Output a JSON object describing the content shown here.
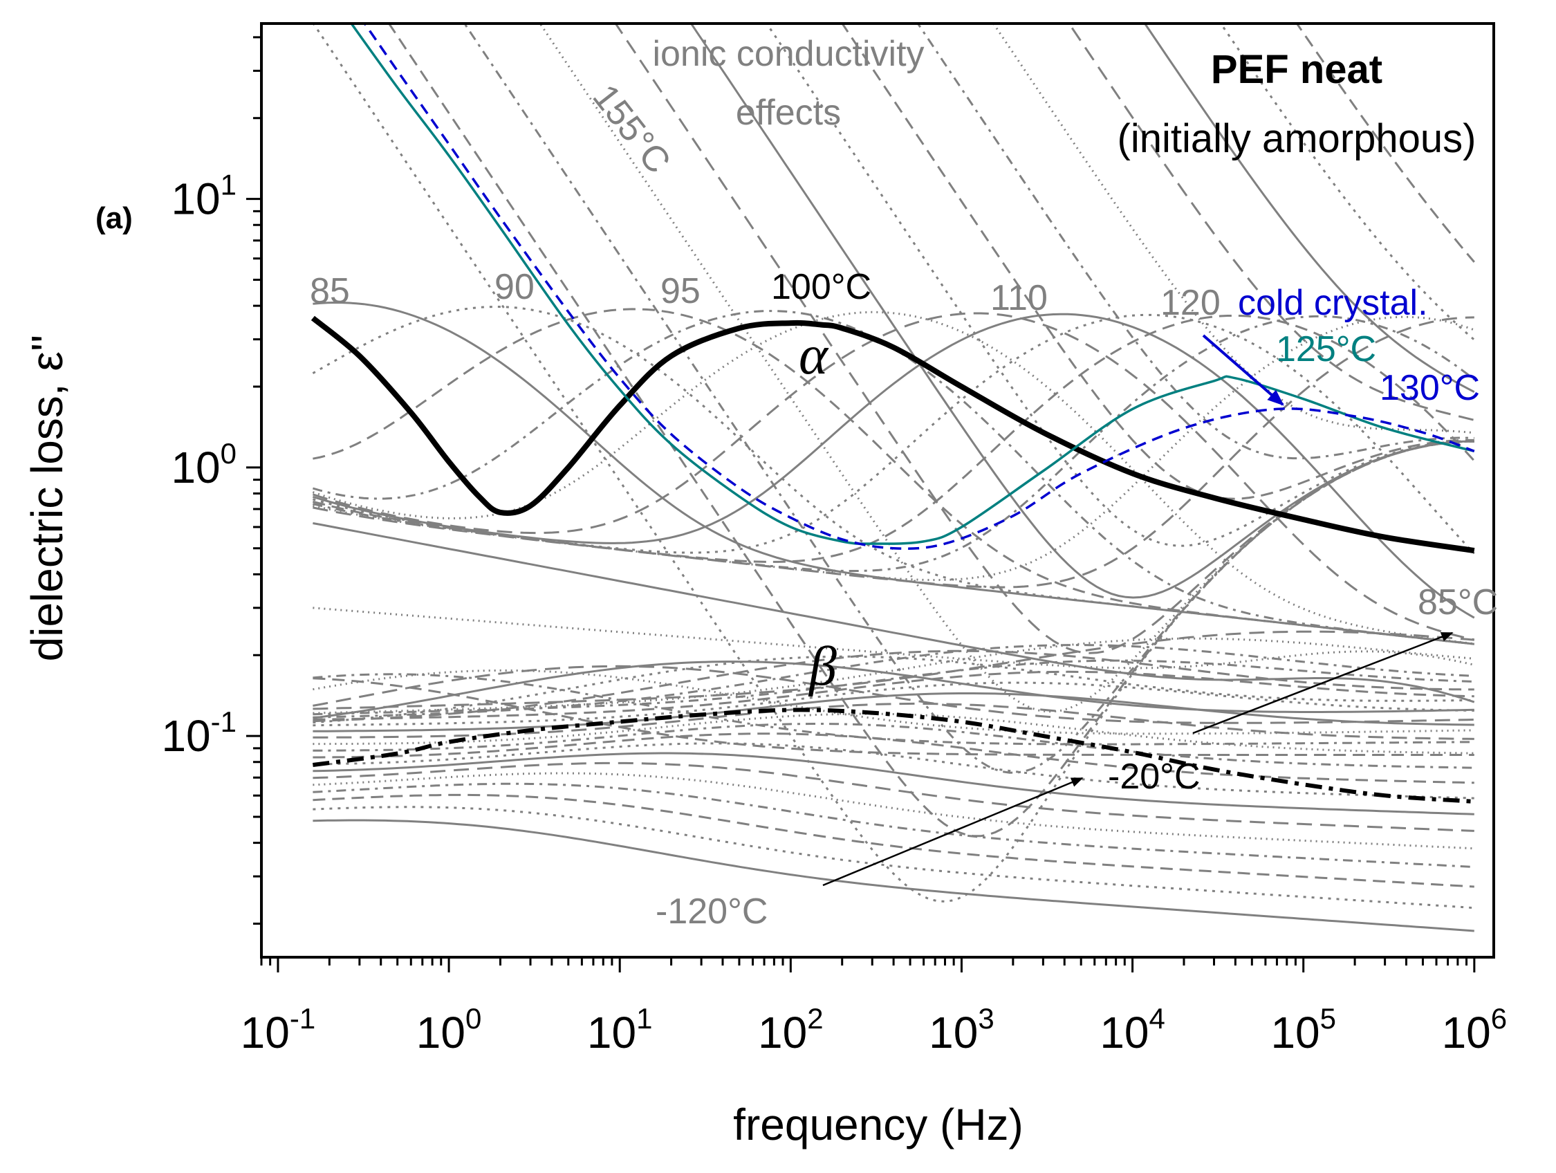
{
  "chart_data": {
    "type": "line",
    "panel_label": "(a)",
    "title": "PEF neat",
    "subtitle": "(initially amorphous)",
    "xlabel": "frequency (Hz)",
    "ylabel": "dielectric loss, ε''",
    "x_scale": "log",
    "y_scale": "log",
    "xlim": [
      0.08,
      1300000
    ],
    "ylim": [
      0.015,
      45
    ],
    "x_ticks": [
      {
        "base": "10",
        "exp": "-1"
      },
      {
        "base": "10",
        "exp": "0"
      },
      {
        "base": "10",
        "exp": "1"
      },
      {
        "base": "10",
        "exp": "2"
      },
      {
        "base": "10",
        "exp": "3"
      },
      {
        "base": "10",
        "exp": "4"
      },
      {
        "base": "10",
        "exp": "5"
      },
      {
        "base": "10",
        "exp": "6"
      }
    ],
    "y_ticks": [
      {
        "base": "10",
        "exp": "-1"
      },
      {
        "base": "10",
        "exp": "0"
      },
      {
        "base": "10",
        "exp": "1"
      }
    ],
    "grid": false,
    "highlighted_series": [
      {
        "label": "100°C",
        "color": "#000000",
        "style": "solid-thick",
        "x": [
          0.16,
          0.3,
          0.6,
          1,
          1.5,
          2,
          3,
          5,
          10,
          20,
          50,
          100,
          150,
          200,
          400,
          1000,
          3000,
          10000,
          30000,
          100000,
          300000,
          1000000
        ],
        "y": [
          3.6,
          2.6,
          1.6,
          1.05,
          0.78,
          0.68,
          0.72,
          1.0,
          1.7,
          2.6,
          3.3,
          3.45,
          3.4,
          3.3,
          2.8,
          2.0,
          1.35,
          0.95,
          0.77,
          0.64,
          0.55,
          0.49
        ]
      },
      {
        "label": "125°C",
        "color": "#008080",
        "style": "solid",
        "x": [
          0.25,
          0.5,
          1,
          2,
          5,
          10,
          20,
          50,
          100,
          200,
          300,
          600,
          1000,
          3000,
          10000,
          30000,
          40000,
          100000,
          300000,
          1000000
        ],
        "y": [
          48,
          26,
          14.5,
          7.8,
          3.4,
          1.95,
          1.22,
          0.78,
          0.6,
          0.53,
          0.52,
          0.53,
          0.6,
          0.97,
          1.65,
          2.1,
          2.15,
          1.8,
          1.4,
          1.15
        ]
      },
      {
        "label": "130°C",
        "color": "#0000d0",
        "style": "dashed",
        "x": [
          0.3,
          0.5,
          1,
          2,
          5,
          10,
          20,
          50,
          100,
          200,
          400,
          800,
          2000,
          5000,
          20000,
          70000,
          200000,
          500000,
          1000000
        ],
        "y": [
          48,
          30,
          16,
          8.5,
          3.8,
          2.15,
          1.33,
          0.84,
          0.65,
          0.54,
          0.5,
          0.52,
          0.66,
          0.95,
          1.4,
          1.65,
          1.55,
          1.35,
          1.15
        ]
      },
      {
        "label": "-20°C",
        "color": "#000000",
        "style": "dashdot-thick",
        "x": [
          0.16,
          0.5,
          1,
          3,
          10,
          30,
          100,
          300,
          1000,
          3000,
          10000,
          30000,
          100000,
          300000,
          1000000
        ],
        "y": [
          0.078,
          0.086,
          0.095,
          0.105,
          0.113,
          0.12,
          0.125,
          0.122,
          0.113,
          0.1,
          0.087,
          0.075,
          0.066,
          0.06,
          0.057
        ]
      }
    ],
    "annotations": [
      {
        "text": "ionic conductivity",
        "color": "#808080"
      },
      {
        "text": "effects",
        "color": "#808080"
      },
      {
        "text": "155°C",
        "color": "#808080"
      },
      {
        "text": "85",
        "color": "#808080"
      },
      {
        "text": "90",
        "color": "#808080"
      },
      {
        "text": "95",
        "color": "#808080"
      },
      {
        "text": "100°C",
        "color": "#000000"
      },
      {
        "text": "110",
        "color": "#808080"
      },
      {
        "text": "120",
        "color": "#808080"
      },
      {
        "text": "cold crystal.",
        "color": "#0000d0"
      },
      {
        "text": "125°C",
        "color": "#008080"
      },
      {
        "text": "130°C",
        "color": "#0000d0"
      },
      {
        "text": "α",
        "color": "#000000"
      },
      {
        "text": "β",
        "color": "#000000"
      },
      {
        "text": "85°C",
        "color": "#808080"
      },
      {
        "text": "-20°C",
        "color": "#000000"
      },
      {
        "text": "-120°C",
        "color": "#808080"
      }
    ],
    "background_series_color": "#808080"
  }
}
